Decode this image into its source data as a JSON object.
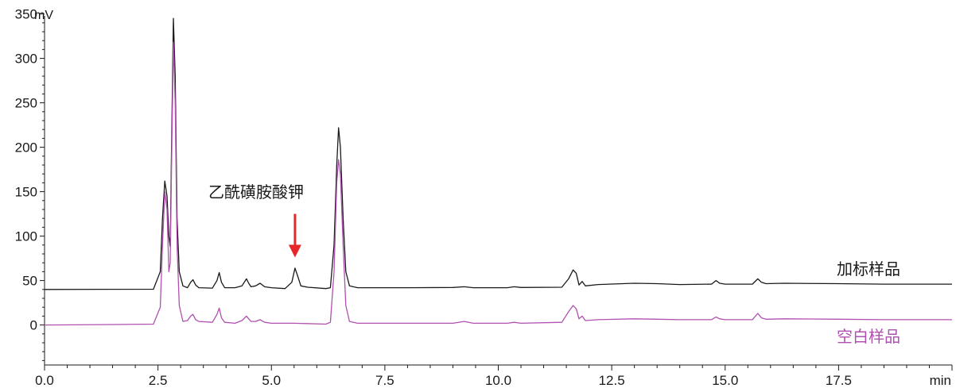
{
  "chart_data": {
    "type": "line",
    "y_unit": "mV",
    "x_unit": "min",
    "xlim": [
      0,
      20
    ],
    "ylim": [
      -45,
      355
    ],
    "x_ticks": [
      "0.0",
      "2.5",
      "5.0",
      "7.5",
      "10.0",
      "12.5",
      "15.0",
      "17.5"
    ],
    "y_ticks": [
      "0",
      "50",
      "100",
      "150",
      "200",
      "250",
      "300",
      "350"
    ],
    "series": [
      {
        "name": "加标样品",
        "color": "#1a1a1a",
        "points": [
          [
            0,
            40
          ],
          [
            2.4,
            40.3
          ],
          [
            2.55,
            60
          ],
          [
            2.6,
            120
          ],
          [
            2.65,
            162
          ],
          [
            2.7,
            145
          ],
          [
            2.74,
            100
          ],
          [
            2.77,
            88
          ],
          [
            2.8,
            200
          ],
          [
            2.84,
            345
          ],
          [
            2.88,
            280
          ],
          [
            2.92,
            120
          ],
          [
            2.97,
            60
          ],
          [
            3.05,
            44
          ],
          [
            3.15,
            42
          ],
          [
            3.22,
            48
          ],
          [
            3.27,
            51
          ],
          [
            3.33,
            45
          ],
          [
            3.4,
            42
          ],
          [
            3.7,
            41.5
          ],
          [
            3.8,
            50
          ],
          [
            3.85,
            59
          ],
          [
            3.9,
            48
          ],
          [
            3.97,
            42
          ],
          [
            4.2,
            42
          ],
          [
            4.35,
            44
          ],
          [
            4.45,
            52
          ],
          [
            4.5,
            47
          ],
          [
            4.55,
            43
          ],
          [
            4.65,
            44
          ],
          [
            4.75,
            47
          ],
          [
            4.85,
            43
          ],
          [
            5.0,
            42
          ],
          [
            5.3,
            41
          ],
          [
            5.45,
            48
          ],
          [
            5.52,
            64
          ],
          [
            5.58,
            55
          ],
          [
            5.65,
            44
          ],
          [
            5.8,
            42.5
          ],
          [
            6.2,
            41
          ],
          [
            6.3,
            42
          ],
          [
            6.38,
            90
          ],
          [
            6.44,
            180
          ],
          [
            6.48,
            222
          ],
          [
            6.52,
            200
          ],
          [
            6.58,
            120
          ],
          [
            6.64,
            60
          ],
          [
            6.72,
            44
          ],
          [
            6.9,
            42
          ],
          [
            8,
            42
          ],
          [
            9.0,
            42.2
          ],
          [
            9.25,
            43
          ],
          [
            9.45,
            42
          ],
          [
            10.2,
            42
          ],
          [
            10.35,
            43
          ],
          [
            10.5,
            42.2
          ],
          [
            11.4,
            42.5
          ],
          [
            11.55,
            52
          ],
          [
            11.65,
            62
          ],
          [
            11.72,
            58
          ],
          [
            11.78,
            45
          ],
          [
            11.85,
            49
          ],
          [
            11.92,
            44
          ],
          [
            12.2,
            45.5
          ],
          [
            13.0,
            47
          ],
          [
            13.5,
            46.5
          ],
          [
            14.0,
            45.5
          ],
          [
            14.7,
            46
          ],
          [
            14.8,
            50
          ],
          [
            14.88,
            47
          ],
          [
            15.0,
            46
          ],
          [
            15.6,
            46
          ],
          [
            15.72,
            52
          ],
          [
            15.8,
            48
          ],
          [
            15.9,
            46.5
          ],
          [
            16.3,
            47
          ],
          [
            17.5,
            46.5
          ],
          [
            18.5,
            46
          ],
          [
            20,
            46
          ]
        ]
      },
      {
        "name": "空白样品",
        "color": "#b050b0",
        "points": [
          [
            0,
            0
          ],
          [
            1.5,
            0.5
          ],
          [
            2.4,
            1
          ],
          [
            2.55,
            20
          ],
          [
            2.6,
            90
          ],
          [
            2.65,
            150
          ],
          [
            2.7,
            130
          ],
          [
            2.74,
            60
          ],
          [
            2.77,
            70
          ],
          [
            2.8,
            180
          ],
          [
            2.84,
            318
          ],
          [
            2.88,
            250
          ],
          [
            2.92,
            90
          ],
          [
            2.97,
            22
          ],
          [
            3.05,
            4
          ],
          [
            3.15,
            5
          ],
          [
            3.22,
            10
          ],
          [
            3.27,
            12
          ],
          [
            3.33,
            6
          ],
          [
            3.4,
            4
          ],
          [
            3.7,
            3
          ],
          [
            3.8,
            12
          ],
          [
            3.85,
            19
          ],
          [
            3.9,
            8
          ],
          [
            3.97,
            3
          ],
          [
            4.2,
            2
          ],
          [
            4.35,
            5
          ],
          [
            4.45,
            10
          ],
          [
            4.5,
            7
          ],
          [
            4.55,
            4
          ],
          [
            4.65,
            4
          ],
          [
            4.75,
            6
          ],
          [
            4.85,
            3
          ],
          [
            5.0,
            2
          ],
          [
            5.5,
            2
          ],
          [
            6.2,
            1
          ],
          [
            6.3,
            3
          ],
          [
            6.38,
            60
          ],
          [
            6.44,
            160
          ],
          [
            6.48,
            186
          ],
          [
            6.52,
            170
          ],
          [
            6.58,
            90
          ],
          [
            6.64,
            22
          ],
          [
            6.72,
            4
          ],
          [
            6.9,
            2
          ],
          [
            8,
            2
          ],
          [
            9.0,
            2
          ],
          [
            9.25,
            4
          ],
          [
            9.45,
            2
          ],
          [
            10.2,
            2
          ],
          [
            10.35,
            3
          ],
          [
            10.5,
            2
          ],
          [
            11.4,
            3
          ],
          [
            11.55,
            15
          ],
          [
            11.65,
            22
          ],
          [
            11.72,
            18
          ],
          [
            11.78,
            7
          ],
          [
            11.85,
            10
          ],
          [
            11.92,
            5
          ],
          [
            12.2,
            6
          ],
          [
            13.0,
            7
          ],
          [
            13.5,
            6.5
          ],
          [
            14.0,
            6
          ],
          [
            14.7,
            6
          ],
          [
            14.8,
            9
          ],
          [
            14.88,
            7
          ],
          [
            15.0,
            6
          ],
          [
            15.6,
            6
          ],
          [
            15.72,
            13
          ],
          [
            15.8,
            8
          ],
          [
            15.9,
            6.5
          ],
          [
            16.3,
            7
          ],
          [
            17.5,
            6.5
          ],
          [
            18.5,
            6
          ],
          [
            20,
            6
          ]
        ]
      }
    ],
    "annotations": [
      {
        "text": "乙酰磺胺酸钾",
        "color": "#1a1a1a",
        "arrow_color": "#e8262a",
        "x": 5.52,
        "arrow_from_y": 125,
        "arrow_to_y": 76
      }
    ],
    "series_labels": [
      {
        "text": "加标样品",
        "color": "#1a1a1a"
      },
      {
        "text": "空白样品",
        "color": "#b050b0"
      }
    ]
  }
}
